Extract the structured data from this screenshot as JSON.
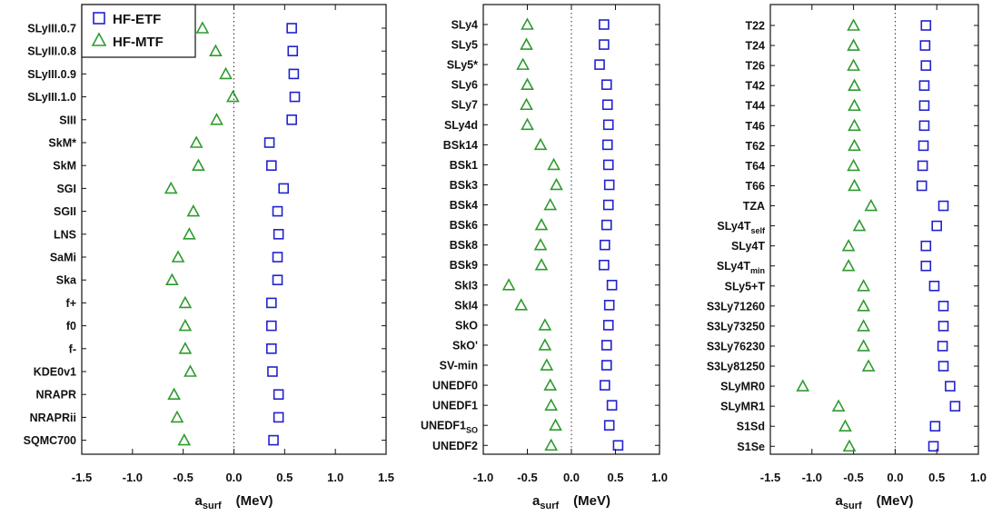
{
  "legend": {
    "etf_label": "HF-ETF",
    "mtf_label": "HF-MTF",
    "placement": "top-left of first panel"
  },
  "colors": {
    "etf": "#2222cc",
    "mtf": "#2e9b2e",
    "axis": "#111111",
    "zero_line": "#333333"
  },
  "xlabel": {
    "main": "a",
    "sub": "surf",
    "unit": "(MeV)"
  },
  "chart_data": [
    {
      "type": "scatter",
      "grid": false,
      "zero_reference_line": "dotted vertical at x=0",
      "xlim": [
        -1.5,
        1.5
      ],
      "xticks": [
        -1.5,
        -1.0,
        -0.5,
        0.0,
        0.5,
        1.0,
        1.5
      ],
      "tick_labels": [
        "-1.5",
        "-1.0",
        "-0.5",
        "0.0",
        "0.5",
        "1.0",
        "1.5"
      ],
      "categories": [
        {
          "main": "SLyIII.0.7",
          "sub": ""
        },
        {
          "main": "SLyIII.0.8",
          "sub": ""
        },
        {
          "main": "SLyIII.0.9",
          "sub": ""
        },
        {
          "main": "SLyIII.1.0",
          "sub": ""
        },
        {
          "main": "SIII",
          "sub": ""
        },
        {
          "main": "SkM*",
          "sub": ""
        },
        {
          "main": "SkM",
          "sub": ""
        },
        {
          "main": "SGI",
          "sub": ""
        },
        {
          "main": "SGII",
          "sub": ""
        },
        {
          "main": "LNS",
          "sub": ""
        },
        {
          "main": "SaMi",
          "sub": ""
        },
        {
          "main": "Ska",
          "sub": ""
        },
        {
          "main": "f+",
          "sub": ""
        },
        {
          "main": "f0",
          "sub": ""
        },
        {
          "main": "f-",
          "sub": ""
        },
        {
          "main": "KDE0v1",
          "sub": ""
        },
        {
          "main": "NRAPR",
          "sub": ""
        },
        {
          "main": "NRAPRii",
          "sub": ""
        },
        {
          "main": "SQMC700",
          "sub": ""
        }
      ],
      "series": [
        {
          "name": "HF-ETF",
          "marker": "square",
          "values": [
            0.57,
            0.58,
            0.59,
            0.6,
            0.57,
            0.35,
            0.37,
            0.49,
            0.43,
            0.44,
            0.43,
            0.43,
            0.37,
            0.37,
            0.37,
            0.38,
            0.44,
            0.44,
            0.39
          ]
        },
        {
          "name": "HF-MTF",
          "marker": "triangle",
          "values": [
            -0.31,
            -0.18,
            -0.08,
            -0.01,
            -0.17,
            -0.37,
            -0.35,
            -0.62,
            -0.4,
            -0.44,
            -0.55,
            -0.61,
            -0.48,
            -0.48,
            -0.48,
            -0.43,
            -0.59,
            -0.56,
            -0.49
          ]
        }
      ]
    },
    {
      "type": "scatter",
      "grid": false,
      "zero_reference_line": "dotted vertical at x=0",
      "xlim": [
        -1.0,
        1.0
      ],
      "xticks": [
        -1.0,
        -0.5,
        0.0,
        0.5,
        1.0
      ],
      "tick_labels": [
        "-1.0",
        "-0.5",
        "0.0",
        "0.5",
        "1.0"
      ],
      "categories": [
        {
          "main": "SLy4",
          "sub": ""
        },
        {
          "main": "SLy5",
          "sub": ""
        },
        {
          "main": "SLy5*",
          "sub": ""
        },
        {
          "main": "SLy6",
          "sub": ""
        },
        {
          "main": "SLy7",
          "sub": ""
        },
        {
          "main": "SLy4d",
          "sub": ""
        },
        {
          "main": "BSk14",
          "sub": ""
        },
        {
          "main": "BSk1",
          "sub": ""
        },
        {
          "main": "BSk3",
          "sub": ""
        },
        {
          "main": "BSk4",
          "sub": ""
        },
        {
          "main": "BSk6",
          "sub": ""
        },
        {
          "main": "BSk8",
          "sub": ""
        },
        {
          "main": "BSk9",
          "sub": ""
        },
        {
          "main": "SkI3",
          "sub": ""
        },
        {
          "main": "SkI4",
          "sub": ""
        },
        {
          "main": "SkO",
          "sub": ""
        },
        {
          "main": "SkO'",
          "sub": ""
        },
        {
          "main": "SV-min",
          "sub": ""
        },
        {
          "main": "UNEDF0",
          "sub": ""
        },
        {
          "main": "UNEDF1",
          "sub": ""
        },
        {
          "main": "UNEDF1",
          "sub": "SO"
        },
        {
          "main": "UNEDF2",
          "sub": ""
        }
      ],
      "series": [
        {
          "name": "HF-ETF",
          "marker": "square",
          "values": [
            0.37,
            0.37,
            0.32,
            0.4,
            0.41,
            0.42,
            0.41,
            0.42,
            0.43,
            0.42,
            0.4,
            0.38,
            0.37,
            0.46,
            0.43,
            0.42,
            0.4,
            0.4,
            0.38,
            0.46,
            0.43,
            0.53
          ]
        },
        {
          "name": "HF-MTF",
          "marker": "triangle",
          "values": [
            -0.5,
            -0.51,
            -0.55,
            -0.5,
            -0.51,
            -0.5,
            -0.35,
            -0.2,
            -0.17,
            -0.24,
            -0.34,
            -0.35,
            -0.34,
            -0.71,
            -0.57,
            -0.3,
            -0.3,
            -0.28,
            -0.24,
            -0.23,
            -0.18,
            -0.23
          ]
        }
      ]
    },
    {
      "type": "scatter",
      "grid": false,
      "zero_reference_line": "dotted vertical at x=0",
      "xlim": [
        -1.5,
        1.0
      ],
      "xticks": [
        -1.5,
        -1.0,
        -0.5,
        0.0,
        0.5,
        1.0
      ],
      "tick_labels": [
        "-1.5",
        "-1.0",
        "-0.5",
        "0.0",
        "0.5",
        "1.0"
      ],
      "categories": [
        {
          "main": "T22",
          "sub": ""
        },
        {
          "main": "T24",
          "sub": ""
        },
        {
          "main": "T26",
          "sub": ""
        },
        {
          "main": "T42",
          "sub": ""
        },
        {
          "main": "T44",
          "sub": ""
        },
        {
          "main": "T46",
          "sub": ""
        },
        {
          "main": "T62",
          "sub": ""
        },
        {
          "main": "T64",
          "sub": ""
        },
        {
          "main": "T66",
          "sub": ""
        },
        {
          "main": "TZA",
          "sub": ""
        },
        {
          "main": "SLy4T",
          "sub": "self"
        },
        {
          "main": "SLy4T",
          "sub": ""
        },
        {
          "main": "SLy4T",
          "sub": "min"
        },
        {
          "main": "SLy5+T",
          "sub": ""
        },
        {
          "main": "S3Ly71260",
          "sub": ""
        },
        {
          "main": "S3Ly73250",
          "sub": ""
        },
        {
          "main": "S3Ly76230",
          "sub": ""
        },
        {
          "main": "S3Ly81250",
          "sub": ""
        },
        {
          "main": "SLyMR0",
          "sub": ""
        },
        {
          "main": "SLyMR1",
          "sub": ""
        },
        {
          "main": "S1Sd",
          "sub": ""
        },
        {
          "main": "S1Se",
          "sub": ""
        }
      ],
      "series": [
        {
          "name": "HF-ETF",
          "marker": "square",
          "values": [
            0.37,
            0.36,
            0.37,
            0.35,
            0.35,
            0.35,
            0.34,
            0.33,
            0.32,
            0.58,
            0.5,
            0.37,
            0.37,
            0.47,
            0.58,
            0.58,
            0.57,
            0.58,
            0.66,
            0.72,
            0.48,
            0.46
          ]
        },
        {
          "name": "HF-MTF",
          "marker": "triangle",
          "values": [
            -0.5,
            -0.5,
            -0.5,
            -0.49,
            -0.49,
            -0.49,
            -0.49,
            -0.5,
            -0.49,
            -0.29,
            -0.43,
            -0.56,
            -0.56,
            -0.38,
            -0.38,
            -0.38,
            -0.38,
            -0.32,
            -1.11,
            -0.68,
            -0.6,
            -0.55
          ]
        }
      ]
    }
  ]
}
